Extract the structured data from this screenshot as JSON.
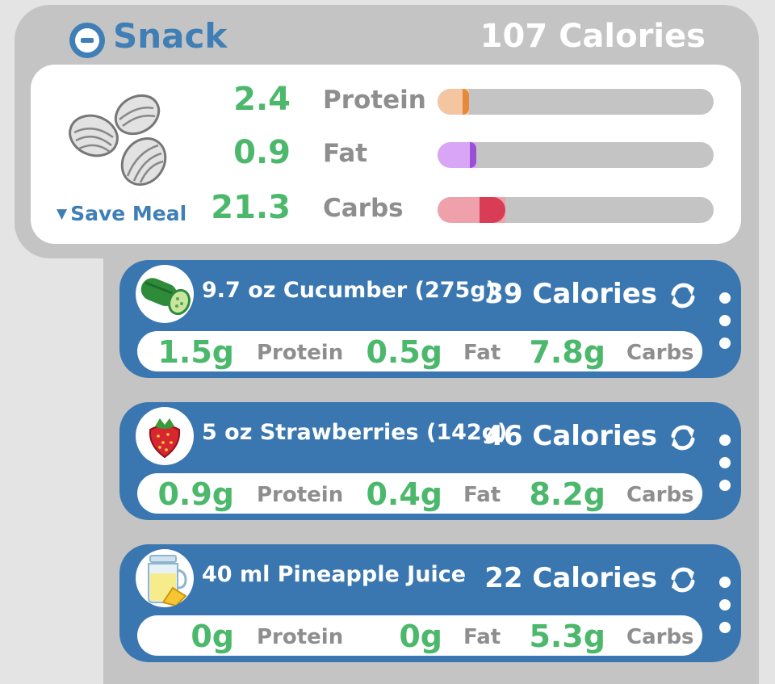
{
  "meal": {
    "title": "Snack",
    "calories": "107 Calories",
    "save_label": "Save Meal",
    "icon": "almonds-icon",
    "macros": [
      {
        "value": "2.4",
        "label": "Protein",
        "fill": 0.115,
        "color": "#f3c6a1",
        "accent": "#e8883a"
      },
      {
        "value": "0.9",
        "label": "Fat",
        "fill": 0.14,
        "color": "#d9a5f5",
        "accent": "#9a4fd6"
      },
      {
        "value": "21.3",
        "label": "Carbs",
        "fill": 0.245,
        "color": "#eea0ab",
        "accent": "#d93d55"
      }
    ]
  },
  "foods": [
    {
      "name": "9.7 oz Cucumber (275g)",
      "calories": "39 Calories",
      "icon": "cucumber-icon",
      "protein": "1.5g",
      "protein_label": "Protein",
      "fat": "0.5g",
      "fat_label": "Fat",
      "carbs": "7.8g",
      "carbs_label": "Carbs"
    },
    {
      "name": "5 oz Strawberries (142g)",
      "calories": "46 Calories",
      "icon": "strawberry-icon",
      "protein": "0.9g",
      "protein_label": "Protein",
      "fat": "0.4g",
      "fat_label": "Fat",
      "carbs": "8.2g",
      "carbs_label": "Carbs"
    },
    {
      "name": "40 ml Pineapple Juice",
      "calories": "22 Calories",
      "icon": "pineapple-juice-icon",
      "protein": "0g",
      "protein_label": "Protein",
      "fat": "0g",
      "fat_label": "Fat",
      "carbs": "5.3g",
      "carbs_label": "Carbs"
    }
  ]
}
